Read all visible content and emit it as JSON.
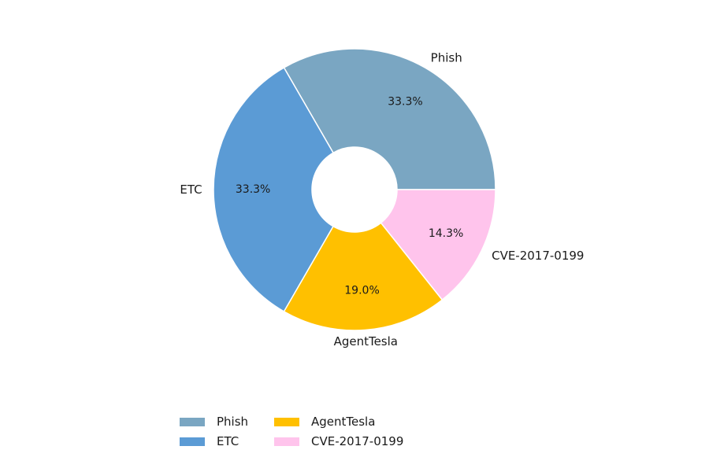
{
  "chart_data": {
    "type": "pie",
    "donut": true,
    "start_angle_deg": 0,
    "direction": "counterclockwise",
    "slices": [
      {
        "label": "Phish",
        "percent": 33.3,
        "percent_label": "33.3%",
        "color": "#7aa6c2"
      },
      {
        "label": "ETC",
        "percent": 33.3,
        "percent_label": "33.3%",
        "color": "#5b9bd5"
      },
      {
        "label": "AgentTesla",
        "percent": 19.0,
        "percent_label": "19.0%",
        "color": "#ffc000"
      },
      {
        "label": "CVE-2017-0199",
        "percent": 14.3,
        "percent_label": "14.3%",
        "color": "#ffc4ec"
      }
    ],
    "legend": {
      "placement": "bottom-center",
      "entries": [
        "Phish",
        "ETC",
        "AgentTesla",
        "CVE-2017-0199"
      ]
    }
  }
}
